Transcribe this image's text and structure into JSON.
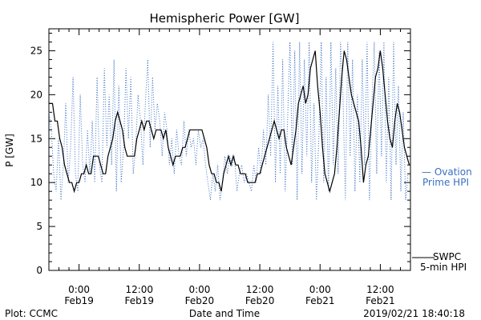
{
  "chart_data": {
    "type": "line",
    "title": "Hemispheric Power [GW]",
    "xlabel": "Date and Time",
    "ylabel": "P [GW]",
    "ylim": [
      0,
      27.5
    ],
    "xlim": [
      -0.25,
      2.75
    ],
    "x_unit_note": "days",
    "yticks": [
      0,
      5,
      10,
      15,
      20,
      25
    ],
    "xticks": [
      {
        "x": 0.0,
        "time": "0:00",
        "date": "Feb19"
      },
      {
        "x": 0.5,
        "time": "12:00",
        "date": "Feb19"
      },
      {
        "x": 1.0,
        "time": "0:00",
        "date": "Feb20"
      },
      {
        "x": 1.5,
        "time": "12:00",
        "date": "Feb20"
      },
      {
        "x": 2.0,
        "time": "0:00",
        "date": "Feb21"
      },
      {
        "x": 2.5,
        "time": "12:00",
        "date": "Feb21"
      }
    ],
    "series": [
      {
        "name": "SWPC 5-min HPI",
        "label_lines": [
          "SWPC",
          "5-min HPI"
        ],
        "color": "#000000",
        "style": "solid",
        "points": [
          [
            -0.25,
            19
          ],
          [
            -0.22,
            19
          ],
          [
            -0.2,
            17
          ],
          [
            -0.18,
            17
          ],
          [
            -0.16,
            15
          ],
          [
            -0.14,
            14
          ],
          [
            -0.12,
            12
          ],
          [
            -0.1,
            11
          ],
          [
            -0.08,
            10
          ],
          [
            -0.06,
            10
          ],
          [
            -0.04,
            9
          ],
          [
            -0.02,
            10
          ],
          [
            0.0,
            10
          ],
          [
            0.02,
            11
          ],
          [
            0.04,
            11
          ],
          [
            0.06,
            12
          ],
          [
            0.08,
            11
          ],
          [
            0.1,
            11
          ],
          [
            0.12,
            13
          ],
          [
            0.14,
            13
          ],
          [
            0.16,
            13
          ],
          [
            0.18,
            12
          ],
          [
            0.2,
            11
          ],
          [
            0.22,
            11
          ],
          [
            0.24,
            13
          ],
          [
            0.26,
            14
          ],
          [
            0.28,
            15
          ],
          [
            0.3,
            17
          ],
          [
            0.32,
            18
          ],
          [
            0.34,
            17
          ],
          [
            0.36,
            16
          ],
          [
            0.38,
            14
          ],
          [
            0.4,
            13
          ],
          [
            0.42,
            13
          ],
          [
            0.44,
            13
          ],
          [
            0.46,
            13
          ],
          [
            0.48,
            15
          ],
          [
            0.5,
            16
          ],
          [
            0.52,
            17
          ],
          [
            0.54,
            16
          ],
          [
            0.56,
            17
          ],
          [
            0.58,
            17
          ],
          [
            0.6,
            16
          ],
          [
            0.62,
            15
          ],
          [
            0.64,
            16
          ],
          [
            0.66,
            16
          ],
          [
            0.68,
            16
          ],
          [
            0.7,
            15
          ],
          [
            0.72,
            16
          ],
          [
            0.74,
            14
          ],
          [
            0.76,
            13
          ],
          [
            0.78,
            12
          ],
          [
            0.8,
            13
          ],
          [
            0.82,
            13
          ],
          [
            0.84,
            13
          ],
          [
            0.86,
            14
          ],
          [
            0.88,
            14
          ],
          [
            0.9,
            15
          ],
          [
            0.92,
            16
          ],
          [
            0.94,
            16
          ],
          [
            0.96,
            16
          ],
          [
            0.98,
            16
          ],
          [
            1.0,
            16
          ],
          [
            1.02,
            16
          ],
          [
            1.04,
            15
          ],
          [
            1.06,
            14
          ],
          [
            1.08,
            12
          ],
          [
            1.1,
            11
          ],
          [
            1.12,
            11
          ],
          [
            1.14,
            10
          ],
          [
            1.16,
            10
          ],
          [
            1.18,
            9
          ],
          [
            1.2,
            11
          ],
          [
            1.22,
            12
          ],
          [
            1.24,
            13
          ],
          [
            1.26,
            12
          ],
          [
            1.28,
            13
          ],
          [
            1.3,
            12
          ],
          [
            1.32,
            12
          ],
          [
            1.34,
            11
          ],
          [
            1.36,
            11
          ],
          [
            1.38,
            11
          ],
          [
            1.4,
            10
          ],
          [
            1.42,
            10
          ],
          [
            1.44,
            10
          ],
          [
            1.46,
            10
          ],
          [
            1.48,
            11
          ],
          [
            1.5,
            11
          ],
          [
            1.52,
            12
          ],
          [
            1.54,
            13
          ],
          [
            1.56,
            14
          ],
          [
            1.58,
            15
          ],
          [
            1.6,
            16
          ],
          [
            1.62,
            17
          ],
          [
            1.64,
            16
          ],
          [
            1.66,
            15
          ],
          [
            1.68,
            16
          ],
          [
            1.7,
            16
          ],
          [
            1.72,
            14
          ],
          [
            1.74,
            13
          ],
          [
            1.76,
            12
          ],
          [
            1.78,
            14
          ],
          [
            1.8,
            16
          ],
          [
            1.82,
            19
          ],
          [
            1.84,
            20
          ],
          [
            1.86,
            21
          ],
          [
            1.88,
            19
          ],
          [
            1.9,
            20
          ],
          [
            1.92,
            23
          ],
          [
            1.94,
            24
          ],
          [
            1.96,
            25
          ],
          [
            1.98,
            21
          ],
          [
            2.0,
            18
          ],
          [
            2.02,
            14
          ],
          [
            2.04,
            11
          ],
          [
            2.06,
            10
          ],
          [
            2.08,
            9
          ],
          [
            2.1,
            10
          ],
          [
            2.12,
            11
          ],
          [
            2.14,
            14
          ],
          [
            2.16,
            18
          ],
          [
            2.18,
            22
          ],
          [
            2.2,
            25
          ],
          [
            2.22,
            24
          ],
          [
            2.24,
            22
          ],
          [
            2.26,
            20
          ],
          [
            2.28,
            19
          ],
          [
            2.3,
            18
          ],
          [
            2.32,
            17
          ],
          [
            2.34,
            14
          ],
          [
            2.36,
            10
          ],
          [
            2.38,
            12
          ],
          [
            2.4,
            13
          ],
          [
            2.42,
            16
          ],
          [
            2.44,
            19
          ],
          [
            2.46,
            22
          ],
          [
            2.48,
            23
          ],
          [
            2.5,
            25
          ],
          [
            2.52,
            23
          ],
          [
            2.54,
            20
          ],
          [
            2.56,
            17
          ],
          [
            2.58,
            15
          ],
          [
            2.6,
            14
          ],
          [
            2.62,
            17
          ],
          [
            2.64,
            19
          ],
          [
            2.66,
            18
          ],
          [
            2.68,
            16
          ],
          [
            2.7,
            14
          ],
          [
            2.72,
            13
          ],
          [
            2.74,
            12
          ]
        ]
      },
      {
        "name": "Ovation Prime HPI",
        "label_lines": [
          "— Ovation",
          "Prime HPI"
        ],
        "color": "#3a6fc4",
        "style": "dotted",
        "points": [
          [
            -0.25,
            18
          ],
          [
            -0.23,
            16
          ],
          [
            -0.21,
            11
          ],
          [
            -0.19,
            9
          ],
          [
            -0.17,
            15
          ],
          [
            -0.15,
            8
          ],
          [
            -0.13,
            12
          ],
          [
            -0.11,
            19
          ],
          [
            -0.09,
            10
          ],
          [
            -0.07,
            14
          ],
          [
            -0.05,
            22
          ],
          [
            -0.03,
            11
          ],
          [
            -0.01,
            9
          ],
          [
            0.01,
            20
          ],
          [
            0.03,
            12
          ],
          [
            0.05,
            10
          ],
          [
            0.07,
            16
          ],
          [
            0.09,
            11
          ],
          [
            0.11,
            17
          ],
          [
            0.13,
            10
          ],
          [
            0.15,
            22
          ],
          [
            0.17,
            12
          ],
          [
            0.19,
            10
          ],
          [
            0.21,
            23
          ],
          [
            0.23,
            14
          ],
          [
            0.25,
            20
          ],
          [
            0.27,
            12
          ],
          [
            0.29,
            24
          ],
          [
            0.31,
            9
          ],
          [
            0.33,
            21
          ],
          [
            0.35,
            10
          ],
          [
            0.37,
            14
          ],
          [
            0.39,
            23
          ],
          [
            0.41,
            15
          ],
          [
            0.43,
            22
          ],
          [
            0.45,
            11
          ],
          [
            0.47,
            14
          ],
          [
            0.49,
            20
          ],
          [
            0.51,
            17
          ],
          [
            0.53,
            12
          ],
          [
            0.55,
            19
          ],
          [
            0.57,
            24
          ],
          [
            0.59,
            14
          ],
          [
            0.61,
            22
          ],
          [
            0.63,
            16
          ],
          [
            0.65,
            19
          ],
          [
            0.67,
            17
          ],
          [
            0.69,
            13
          ],
          [
            0.71,
            18
          ],
          [
            0.73,
            16
          ],
          [
            0.75,
            12
          ],
          [
            0.77,
            15
          ],
          [
            0.79,
            11
          ],
          [
            0.81,
            16
          ],
          [
            0.83,
            13
          ],
          [
            0.85,
            12
          ],
          [
            0.87,
            17
          ],
          [
            0.89,
            13
          ],
          [
            0.91,
            16
          ],
          [
            0.93,
            14
          ],
          [
            0.95,
            15
          ],
          [
            0.97,
            12
          ],
          [
            0.99,
            16
          ],
          [
            1.01,
            14
          ],
          [
            1.03,
            15
          ],
          [
            1.05,
            12
          ],
          [
            1.07,
            10
          ],
          [
            1.09,
            8
          ],
          [
            1.11,
            11
          ],
          [
            1.13,
            9
          ],
          [
            1.15,
            12
          ],
          [
            1.17,
            8
          ],
          [
            1.19,
            10
          ],
          [
            1.21,
            13
          ],
          [
            1.23,
            11
          ],
          [
            1.25,
            13
          ],
          [
            1.27,
            12
          ],
          [
            1.29,
            13
          ],
          [
            1.31,
            9
          ],
          [
            1.33,
            11
          ],
          [
            1.35,
            12
          ],
          [
            1.37,
            10
          ],
          [
            1.39,
            11
          ],
          [
            1.41,
            10
          ],
          [
            1.43,
            9
          ],
          [
            1.45,
            12
          ],
          [
            1.47,
            10
          ],
          [
            1.49,
            14
          ],
          [
            1.51,
            11
          ],
          [
            1.53,
            16
          ],
          [
            1.55,
            12
          ],
          [
            1.57,
            20
          ],
          [
            1.59,
            13
          ],
          [
            1.61,
            26
          ],
          [
            1.63,
            10
          ],
          [
            1.65,
            21
          ],
          [
            1.67,
            11
          ],
          [
            1.69,
            24
          ],
          [
            1.71,
            9
          ],
          [
            1.73,
            17
          ],
          [
            1.75,
            26
          ],
          [
            1.77,
            12
          ],
          [
            1.79,
            25
          ],
          [
            1.81,
            8
          ],
          [
            1.83,
            26
          ],
          [
            1.85,
            11
          ],
          [
            1.87,
            24
          ],
          [
            1.89,
            13
          ],
          [
            1.91,
            26
          ],
          [
            1.93,
            10
          ],
          [
            1.95,
            19
          ],
          [
            1.97,
            8
          ],
          [
            1.99,
            15
          ],
          [
            2.01,
            26
          ],
          [
            2.03,
            10
          ],
          [
            2.05,
            22
          ],
          [
            2.07,
            9
          ],
          [
            2.09,
            26
          ],
          [
            2.11,
            12
          ],
          [
            2.13,
            23
          ],
          [
            2.15,
            11
          ],
          [
            2.17,
            26
          ],
          [
            2.19,
            20
          ],
          [
            2.21,
            8
          ],
          [
            2.23,
            26
          ],
          [
            2.25,
            13
          ],
          [
            2.27,
            24
          ],
          [
            2.29,
            9
          ],
          [
            2.31,
            20
          ],
          [
            2.33,
            10
          ],
          [
            2.35,
            24
          ],
          [
            2.37,
            12
          ],
          [
            2.39,
            26
          ],
          [
            2.41,
            8
          ],
          [
            2.43,
            19
          ],
          [
            2.45,
            26
          ],
          [
            2.47,
            11
          ],
          [
            2.49,
            25
          ],
          [
            2.51,
            13
          ],
          [
            2.53,
            26
          ],
          [
            2.55,
            10
          ],
          [
            2.57,
            22
          ],
          [
            2.59,
            8
          ],
          [
            2.61,
            26
          ],
          [
            2.63,
            12
          ],
          [
            2.65,
            21
          ],
          [
            2.67,
            9
          ],
          [
            2.69,
            18
          ],
          [
            2.71,
            8
          ],
          [
            2.73,
            11
          ]
        ]
      }
    ]
  },
  "footer": {
    "plot_credit": "Plot: CCMC",
    "timestamp": "2019/02/21  18:40:18"
  }
}
